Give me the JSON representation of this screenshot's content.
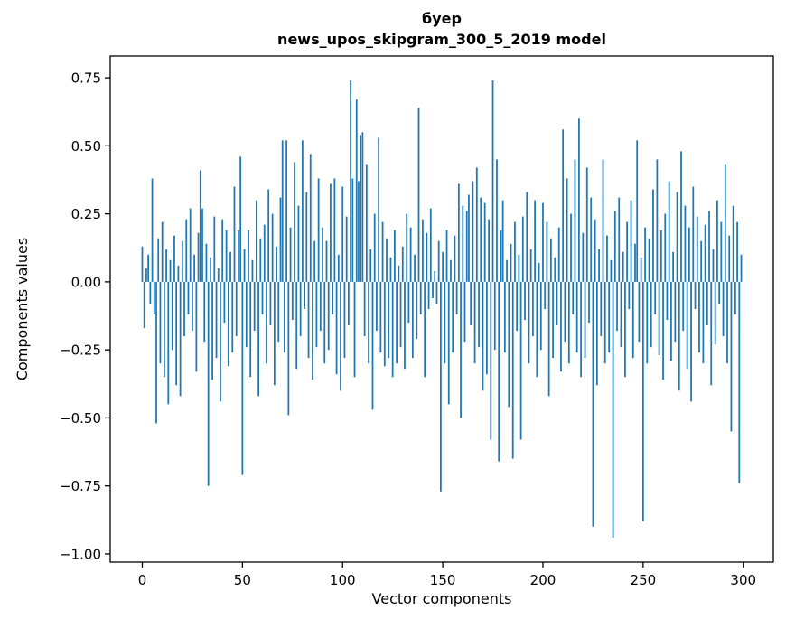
{
  "chart_data": {
    "type": "bar",
    "title": "буер",
    "subtitle": "news_upos_skipgram_300_5_2019 model",
    "xlabel": "Vector components",
    "ylabel": "Components values",
    "bar_color": "#1f77b4",
    "axis_color": "#000000",
    "background_color": "#ffffff",
    "grid": false,
    "legend": "none",
    "xlim": [
      -16,
      315
    ],
    "ylim": [
      -1.03,
      0.83
    ],
    "xticks": [
      0,
      50,
      100,
      150,
      200,
      250,
      300
    ],
    "xtick_labels": [
      "0",
      "50",
      "100",
      "150",
      "200",
      "250",
      "300"
    ],
    "ytick_values": [
      -1.0,
      -0.75,
      -0.5,
      -0.25,
      0.0,
      0.25,
      0.5,
      0.75
    ],
    "ytick_labels": [
      "−1.00",
      "−0.75",
      "−0.50",
      "−0.25",
      "0.00",
      "0.25",
      "0.50",
      "0.75"
    ],
    "values": [
      0.13,
      -0.17,
      0.05,
      0.1,
      -0.08,
      0.38,
      -0.12,
      -0.52,
      0.16,
      -0.3,
      0.22,
      -0.35,
      0.12,
      -0.45,
      0.08,
      -0.25,
      0.17,
      -0.38,
      0.06,
      -0.42,
      0.15,
      -0.2,
      0.23,
      -0.12,
      0.27,
      -0.18,
      0.1,
      -0.33,
      0.18,
      0.41,
      0.27,
      -0.22,
      0.14,
      -0.75,
      0.09,
      -0.36,
      0.24,
      -0.28,
      0.05,
      -0.44,
      0.23,
      -0.15,
      0.19,
      -0.31,
      0.11,
      -0.26,
      0.35,
      -0.2,
      0.19,
      0.46,
      -0.71,
      0.12,
      -0.24,
      0.19,
      -0.35,
      0.08,
      -0.18,
      0.3,
      -0.42,
      0.16,
      -0.12,
      0.21,
      -0.3,
      0.34,
      -0.16,
      0.25,
      -0.38,
      0.13,
      -0.22,
      0.31,
      0.52,
      -0.26,
      0.52,
      -0.49,
      0.2,
      -0.14,
      0.44,
      -0.32,
      0.28,
      -0.2,
      0.52,
      -0.1,
      0.33,
      -0.28,
      0.47,
      -0.36,
      0.15,
      -0.24,
      0.38,
      -0.18,
      0.2,
      -0.3,
      0.15,
      -0.25,
      0.36,
      -0.12,
      0.38,
      -0.34,
      0.1,
      -0.4,
      0.35,
      -0.28,
      0.24,
      -0.16,
      0.74,
      0.38,
      -0.35,
      0.67,
      0.37,
      0.54,
      0.55,
      -0.2,
      0.43,
      -0.3,
      0.12,
      -0.47,
      0.25,
      -0.18,
      0.53,
      -0.26,
      0.22,
      -0.31,
      0.16,
      -0.28,
      0.09,
      -0.35,
      0.19,
      -0.3,
      0.06,
      -0.24,
      0.13,
      -0.32,
      0.25,
      -0.15,
      0.2,
      -0.28,
      0.1,
      -0.21,
      0.64,
      -0.12,
      0.23,
      -0.35,
      0.18,
      -0.1,
      0.27,
      -0.06,
      0.04,
      -0.08,
      0.15,
      -0.77,
      0.11,
      -0.3,
      0.19,
      -0.45,
      0.08,
      -0.26,
      0.17,
      -0.12,
      0.36,
      -0.5,
      0.28,
      -0.22,
      0.26,
      0.32,
      -0.16,
      0.37,
      -0.3,
      0.42,
      -0.24,
      0.31,
      -0.4,
      0.29,
      -0.34,
      0.23,
      -0.58,
      0.74,
      -0.25,
      0.45,
      -0.66,
      0.19,
      0.3,
      -0.26,
      0.08,
      -0.46,
      0.14,
      -0.65,
      0.22,
      -0.18,
      0.1,
      -0.58,
      0.24,
      -0.14,
      0.33,
      -0.3,
      0.12,
      -0.2,
      0.3,
      -0.35,
      0.07,
      -0.25,
      0.29,
      -0.1,
      0.22,
      -0.42,
      0.16,
      -0.28,
      0.09,
      -0.16,
      0.2,
      -0.33,
      0.56,
      -0.22,
      0.38,
      -0.3,
      0.25,
      -0.12,
      0.45,
      -0.26,
      0.6,
      -0.35,
      0.18,
      -0.28,
      0.42,
      -0.15,
      0.31,
      -0.9,
      0.23,
      -0.38,
      0.12,
      -0.2,
      0.45,
      -0.3,
      0.17,
      -0.26,
      0.08,
      -0.94,
      0.26,
      -0.18,
      0.31,
      -0.24,
      0.11,
      -0.35,
      0.22,
      -0.1,
      0.3,
      -0.28,
      0.14,
      0.52,
      -0.22,
      0.09,
      -0.88,
      0.2,
      -0.3,
      0.16,
      -0.24,
      0.34,
      -0.12,
      0.45,
      -0.27,
      0.19,
      -0.36,
      0.25,
      -0.14,
      0.37,
      -0.29,
      0.11,
      -0.22,
      0.33,
      -0.4,
      0.48,
      -0.18,
      0.28,
      -0.32,
      0.2,
      -0.44,
      0.35,
      -0.1,
      0.24,
      -0.26,
      0.15,
      -0.3,
      0.21,
      -0.16,
      0.26,
      -0.38,
      0.12,
      -0.23,
      0.3,
      -0.08,
      0.22,
      -0.2,
      0.43,
      -0.3,
      0.17,
      -0.55,
      0.28,
      -0.12,
      0.22,
      -0.74,
      0.1
    ]
  }
}
